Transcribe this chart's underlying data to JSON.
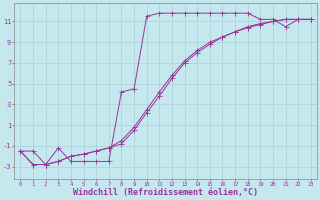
{
  "background_color": "#c5e8ee",
  "grid_color": "#aed4da",
  "line_color": "#993399",
  "xlabel": "Windchill (Refroidissement éolien,°C)",
  "xlabel_fontsize": 6.0,
  "ylabel_ticks": [
    -3,
    -1,
    1,
    3,
    5,
    7,
    9,
    11
  ],
  "xlabel_ticks": [
    0,
    1,
    2,
    3,
    4,
    5,
    6,
    7,
    8,
    9,
    10,
    11,
    12,
    13,
    14,
    15,
    16,
    17,
    18,
    19,
    20,
    21,
    22,
    23
  ],
  "xlim": [
    -0.5,
    23.5
  ],
  "ylim": [
    -4.2,
    12.8
  ],
  "line1_x": [
    0,
    1,
    2,
    3,
    4,
    5,
    6,
    7,
    8,
    9,
    10,
    11,
    12,
    13,
    14,
    15,
    16,
    17,
    18,
    19,
    20,
    21,
    22,
    23
  ],
  "line1_y": [
    -1.5,
    -1.5,
    -2.8,
    -1.2,
    -2.5,
    -2.5,
    -2.5,
    -2.5,
    4.2,
    4.5,
    11.5,
    11.8,
    11.8,
    11.8,
    11.8,
    11.8,
    11.8,
    11.8,
    11.8,
    11.2,
    11.2,
    10.5,
    11.2,
    11.2
  ],
  "line2_x": [
    0,
    1,
    2,
    3,
    4,
    5,
    6,
    7,
    8,
    9,
    10,
    11,
    12,
    13,
    14,
    15,
    16,
    17,
    18,
    19,
    20,
    21,
    22,
    23
  ],
  "line2_y": [
    -1.5,
    -2.8,
    -2.8,
    -2.5,
    -2.0,
    -1.8,
    -1.5,
    -1.2,
    -0.8,
    0.5,
    2.2,
    3.8,
    5.5,
    7.0,
    8.0,
    8.8,
    9.5,
    10.0,
    10.5,
    10.8,
    11.0,
    11.2,
    11.2,
    11.2
  ],
  "line3_x": [
    0,
    1,
    2,
    3,
    4,
    5,
    6,
    7,
    8,
    9,
    10,
    11,
    12,
    13,
    14,
    15,
    16,
    17,
    18,
    19,
    20,
    21,
    22,
    23
  ],
  "line3_y": [
    -1.5,
    -2.8,
    -2.8,
    -2.5,
    -2.0,
    -1.8,
    -1.5,
    -1.2,
    -0.5,
    0.8,
    2.5,
    4.2,
    5.8,
    7.2,
    8.2,
    9.0,
    9.5,
    10.0,
    10.4,
    10.7,
    11.0,
    11.2,
    11.2,
    11.2
  ]
}
